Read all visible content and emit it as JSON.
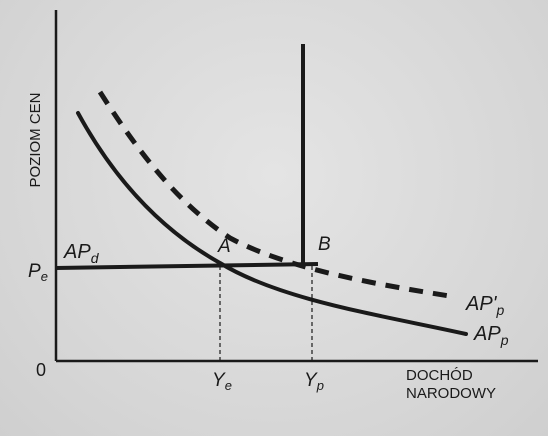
{
  "chart_data": {
    "type": "line",
    "ylabel": "POZIOM CEN",
    "xlabel": "DOCHÓD NARODOWY",
    "origin_label": "0",
    "x_ticks": [
      {
        "base": "Y",
        "sub": "e"
      },
      {
        "base": "Y",
        "sub": "p"
      }
    ],
    "y_ticks": [
      {
        "base": "P",
        "sub": "e"
      }
    ],
    "points": [
      {
        "name": "A"
      },
      {
        "name": "B"
      }
    ],
    "series": [
      {
        "name": "AP_d",
        "base": "AP",
        "sub": "d",
        "style": "solid-horizontal-to-vertical",
        "color": "#1a1a1a"
      },
      {
        "name": "AP'_p",
        "base": "AP'",
        "sub": "p",
        "style": "dashed",
        "color": "#1a1a1a"
      },
      {
        "name": "AP_p",
        "base": "AP",
        "sub": "p",
        "style": "solid",
        "color": "#1a1a1a"
      }
    ],
    "grid": false
  }
}
